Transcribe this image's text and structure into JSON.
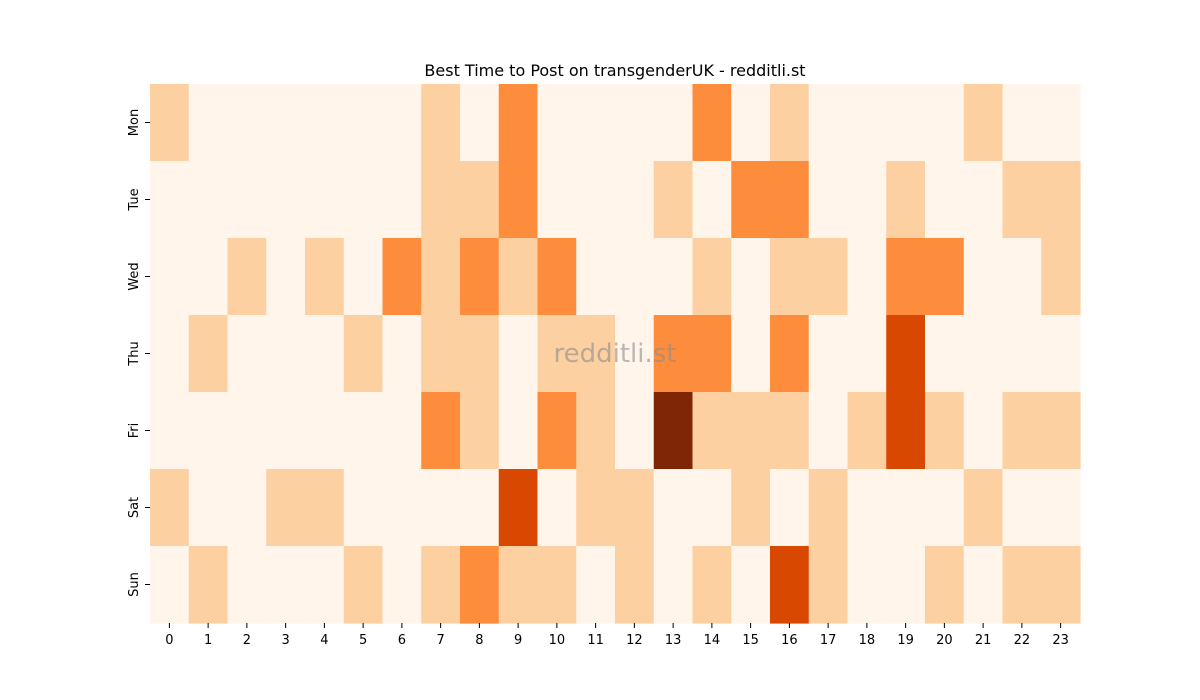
{
  "chart_data": {
    "type": "heatmap",
    "title": "Best Time to Post on transgenderUK - redditli.st",
    "watermark": "redditli.st",
    "x": [
      "0",
      "1",
      "2",
      "3",
      "4",
      "5",
      "6",
      "7",
      "8",
      "9",
      "10",
      "11",
      "12",
      "13",
      "14",
      "15",
      "16",
      "17",
      "18",
      "19",
      "20",
      "21",
      "22",
      "23"
    ],
    "y": [
      "Mon",
      "Tue",
      "Wed",
      "Thu",
      "Fri",
      "Sat",
      "Sun"
    ],
    "xlabel": "",
    "ylabel": "",
    "colormap": "Oranges",
    "value_range": [
      0,
      4
    ],
    "colors": {
      "0": "#fff5eb",
      "1": "#fdd0a2",
      "2": "#fd8d3c",
      "3": "#d94801",
      "4": "#7f2704"
    },
    "values": [
      [
        1,
        0,
        0,
        0,
        0,
        0,
        0,
        1,
        0,
        2,
        0,
        0,
        0,
        0,
        2,
        0,
        1,
        0,
        0,
        0,
        0,
        1,
        0,
        0
      ],
      [
        0,
        0,
        0,
        0,
        0,
        0,
        0,
        1,
        1,
        2,
        0,
        0,
        0,
        1,
        0,
        2,
        2,
        0,
        0,
        1,
        0,
        0,
        1,
        1
      ],
      [
        0,
        0,
        1,
        0,
        1,
        0,
        2,
        1,
        2,
        1,
        2,
        0,
        0,
        0,
        1,
        0,
        1,
        1,
        0,
        2,
        2,
        0,
        0,
        1
      ],
      [
        0,
        1,
        0,
        0,
        0,
        1,
        0,
        1,
        1,
        0,
        1,
        1,
        0,
        2,
        2,
        0,
        2,
        0,
        0,
        3,
        0,
        0,
        0,
        0
      ],
      [
        0,
        0,
        0,
        0,
        0,
        0,
        0,
        2,
        1,
        0,
        2,
        1,
        0,
        4,
        1,
        1,
        1,
        0,
        1,
        3,
        1,
        0,
        1,
        1
      ],
      [
        1,
        0,
        0,
        1,
        1,
        0,
        0,
        0,
        0,
        3,
        0,
        1,
        1,
        0,
        0,
        1,
        0,
        1,
        0,
        0,
        0,
        1,
        0,
        0
      ],
      [
        0,
        1,
        0,
        0,
        0,
        1,
        0,
        1,
        2,
        1,
        1,
        0,
        1,
        0,
        1,
        0,
        3,
        1,
        0,
        0,
        1,
        0,
        1,
        1
      ]
    ]
  }
}
